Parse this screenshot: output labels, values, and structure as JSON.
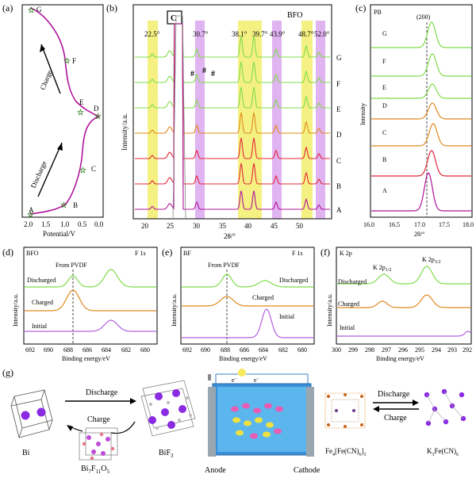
{
  "panels": {
    "a": {
      "label": "(a)",
      "xlabel": "Potential/V",
      "x_ticks": [
        "2.0",
        "1.5",
        "1.0",
        "0.5",
        "0.0"
      ],
      "points": [
        "A",
        "B",
        "C",
        "D",
        "E",
        "F",
        "G"
      ],
      "charge_label": "Charge",
      "discharge_label": "Discharge"
    },
    "b": {
      "label": "(b)",
      "title": "BFO",
      "box_label": "C",
      "peak_labels": [
        "22.5°",
        "30.7°",
        "38.1°",
        "39.7°",
        "43.9°",
        "48.7°",
        "52.0°"
      ],
      "hash_label": "#",
      "curve_labels": [
        "G",
        "F",
        "E",
        "D",
        "C",
        "B",
        "A"
      ],
      "ylabel": "Intensity/a.u.",
      "xlabel": "2θ/°",
      "x_ticks": [
        "20",
        "25",
        "30",
        "35",
        "40",
        "45",
        "50"
      ]
    },
    "c": {
      "label": "(c)",
      "title": "PB",
      "peak_label": "(200)",
      "curve_labels": [
        "G",
        "F",
        "E",
        "D",
        "C",
        "B",
        "A"
      ],
      "ylabel": "Intensity",
      "xlabel": "2θ/°",
      "x_ticks": [
        "16.0",
        "16.5",
        "17.0",
        "17.5",
        "18.0"
      ]
    },
    "d": {
      "label": "(d)",
      "sample": "BFO",
      "region": "F 1s",
      "annotation": "From PVDF",
      "curves": [
        "Discharged",
        "Charged",
        "Initial"
      ],
      "ylabel": "Intensity/a.u.",
      "xlabel": "Binding energy/eV",
      "x_ticks": [
        "692",
        "690",
        "688",
        "686",
        "684",
        "682",
        "680"
      ]
    },
    "e": {
      "label": "(e)",
      "sample": "BF",
      "region": "F 1s",
      "annotation": "From PVDF",
      "curves": [
        "Discharged",
        "Charged",
        "Initial"
      ],
      "ylabel": "Intensity/a.u.",
      "xlabel": "Binding energy/eV",
      "x_ticks": [
        "692",
        "690",
        "688",
        "686",
        "684",
        "682",
        "680"
      ]
    },
    "f": {
      "label": "(f)",
      "region": "K 2p",
      "peak1": "K 2p",
      "peak1_sub": "1/2",
      "peak2": "K 2p",
      "peak2_sub": "3/2",
      "curves": [
        "Discharged",
        "Charged",
        "Initial"
      ],
      "ylabel": "Intensity/a.u.",
      "xlabel": "Binding energy/eV",
      "x_ticks": [
        "300",
        "299",
        "298",
        "297",
        "296",
        "295",
        "294",
        "293",
        "292"
      ]
    },
    "g": {
      "label": "(g)",
      "bi": "Bi",
      "bi7": "Bi",
      "bi7_sub1": "7",
      "bi7_mid": "F",
      "bi7_sub2": "11",
      "bi7_end": "O",
      "bi7_sub3": "5",
      "bif3": "BiF",
      "bif3_sub": "3",
      "discharge": "Discharge",
      "charge": "Charge",
      "anode": "Anode",
      "cathode": "Cathode",
      "electron": "e",
      "electron_sup": "−",
      "fe4": "Fe",
      "fe4_sub": "4",
      "fe4_mid": "[Fe(CN)",
      "fe4_sub2": "6",
      "fe4_end": "]",
      "fe4_sub3": "3",
      "k3": "K",
      "k3_sub": "3",
      "k3_mid": "Fe(CN)",
      "k3_sub2": "6"
    }
  },
  "colors": {
    "magenta": "#b0149b",
    "red": "#e3263a",
    "orange": "#e08a1e",
    "green": "#7edc4a",
    "purple": "#b560e0",
    "yellow_band": "#f2ef6c",
    "purple_band": "#dba6ef"
  }
}
